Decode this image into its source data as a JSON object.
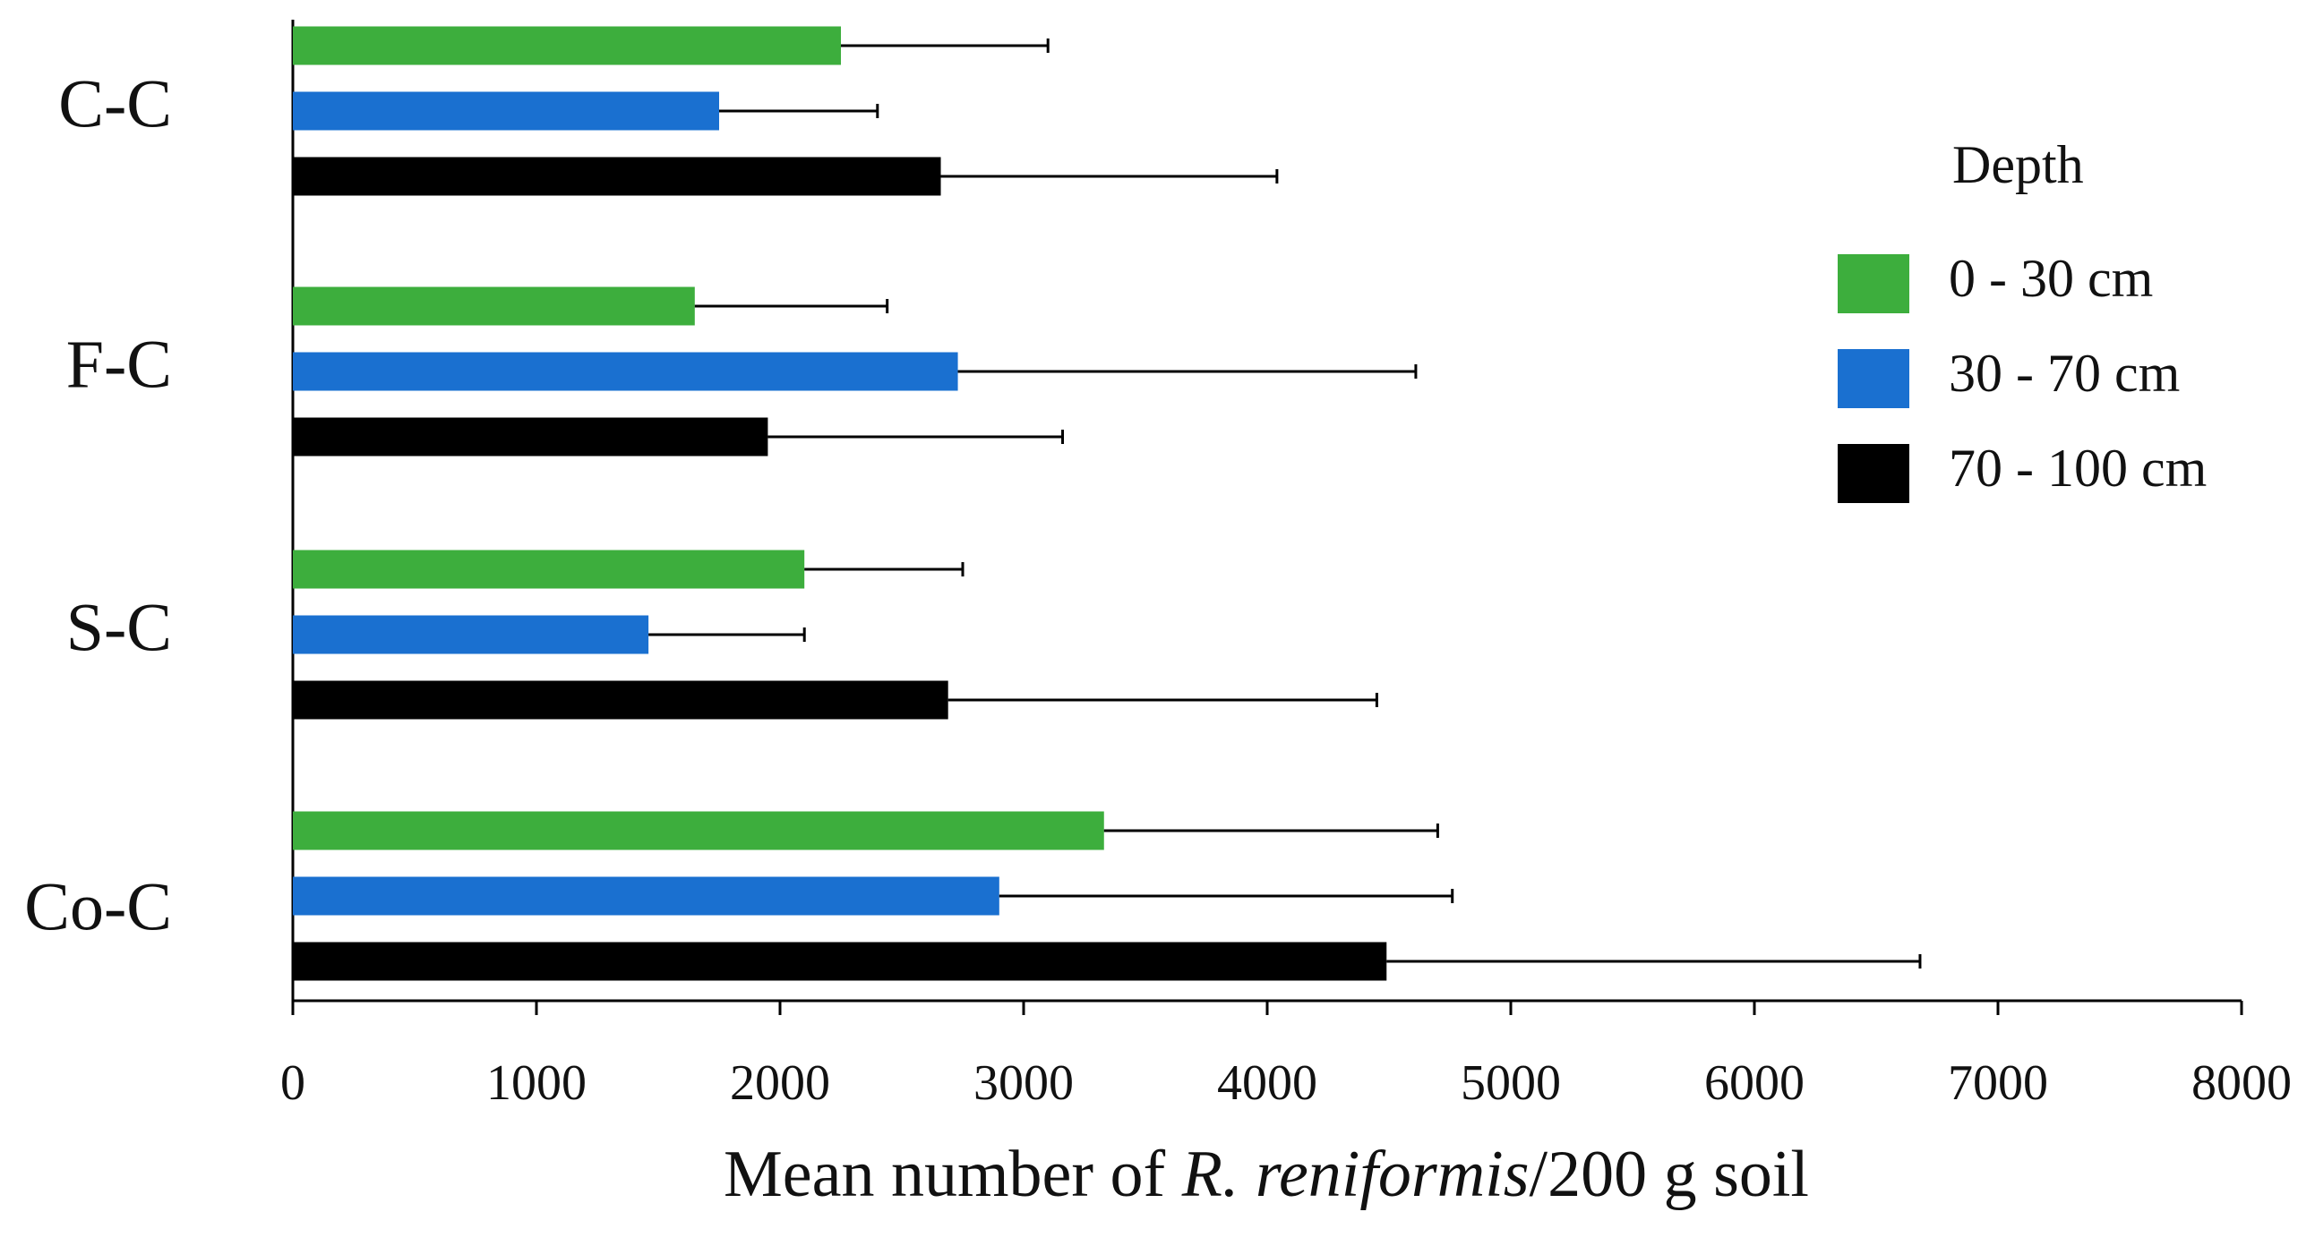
{
  "chart_data": {
    "type": "hbar",
    "xlabel": [
      "Mean number of ",
      "R. reniformis",
      "/200 g soil"
    ],
    "categories": [
      "C-C",
      "F-C",
      "S-C",
      "Co-C"
    ],
    "legend_title": "Depth",
    "legend": "right",
    "series": [
      {
        "name": "0 - 30 cm",
        "color": "#3dae3d",
        "values": [
          2250,
          1650,
          2100,
          3330
        ],
        "errors": [
          850,
          790,
          650,
          1370
        ]
      },
      {
        "name": "30 - 70 cm",
        "color": "#1a70d0",
        "values": [
          1750,
          2730,
          1460,
          2900
        ],
        "errors": [
          650,
          1880,
          640,
          1860
        ]
      },
      {
        "name": "70 - 100 cm",
        "color": "#000000",
        "values": [
          2660,
          1950,
          2690,
          4490
        ],
        "errors": [
          1380,
          1210,
          1760,
          2190
        ]
      }
    ],
    "xlim": [
      0,
      8000
    ],
    "xticks": [
      0,
      1000,
      2000,
      3000,
      4000,
      5000,
      6000,
      7000,
      8000
    ]
  }
}
